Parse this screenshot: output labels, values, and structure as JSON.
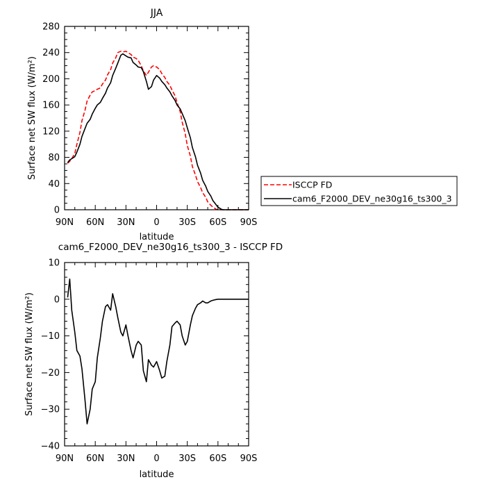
{
  "chart_data": [
    {
      "type": "line",
      "title": "JJA",
      "xlabel": "latitude",
      "ylabel": "Surface net SW flux (W/m²)",
      "xlim": [
        90,
        -90
      ],
      "ylim": [
        0,
        280
      ],
      "xticks": [
        "90N",
        "60N",
        "30N",
        "0",
        "30S",
        "60S",
        "90S"
      ],
      "yticks": [
        "0",
        "40",
        "80",
        "120",
        "160",
        "200",
        "240",
        "280"
      ],
      "legend_position": "right",
      "series": [
        {
          "name": "ISCCP FD",
          "color": "#ff0000",
          "dash": "dashed",
          "x": [
            87,
            85,
            83,
            80,
            78,
            75,
            73,
            70,
            68,
            65,
            63,
            60,
            58,
            55,
            53,
            50,
            48,
            45,
            43,
            40,
            38,
            35,
            33,
            30,
            28,
            25,
            23,
            20,
            18,
            15,
            13,
            10,
            8,
            5,
            3,
            0,
            -3,
            -5,
            -8,
            -10,
            -13,
            -15,
            -18,
            -20,
            -23,
            -25,
            -28,
            -30,
            -33,
            -35,
            -38,
            -40,
            -43,
            -45,
            -48,
            -50,
            -53,
            -55,
            -58,
            -60,
            -63,
            -65,
            -68,
            -70,
            -75,
            -80,
            -85,
            -90
          ],
          "y": [
            71,
            74,
            78,
            86,
            100,
            118,
            136,
            152,
            166,
            175,
            180,
            182,
            184,
            186,
            192,
            198,
            206,
            214,
            224,
            232,
            240,
            242,
            241,
            242,
            240,
            237,
            233,
            231,
            228,
            220,
            212,
            205,
            210,
            218,
            220,
            218,
            214,
            208,
            202,
            196,
            190,
            183,
            174,
            164,
            150,
            134,
            116,
            98,
            82,
            66,
            53,
            43,
            34,
            26,
            19,
            12,
            7,
            4,
            1,
            0,
            0,
            0,
            0,
            0,
            0,
            0,
            0,
            0
          ]
        },
        {
          "name": "cam6_F2000_DEV_ne30g16_ts300_3",
          "color": "#000000",
          "dash": "solid",
          "x": [
            87,
            85,
            83,
            80,
            78,
            75,
            73,
            70,
            68,
            65,
            63,
            60,
            58,
            55,
            53,
            50,
            48,
            45,
            43,
            40,
            38,
            35,
            33,
            30,
            28,
            25,
            23,
            20,
            18,
            15,
            13,
            10,
            8,
            5,
            3,
            0,
            -3,
            -5,
            -8,
            -10,
            -13,
            -15,
            -18,
            -20,
            -23,
            -25,
            -28,
            -30,
            -33,
            -35,
            -38,
            -40,
            -43,
            -45,
            -48,
            -50,
            -53,
            -55,
            -58,
            -60,
            -63,
            -65,
            -68,
            -70,
            -75,
            -80,
            -85,
            -90
          ],
          "y": [
            72,
            76,
            78,
            81,
            88,
            100,
            112,
            124,
            132,
            138,
            146,
            155,
            160,
            164,
            170,
            178,
            186,
            194,
            205,
            216,
            224,
            236,
            238,
            235,
            233,
            232,
            225,
            221,
            218,
            217,
            211,
            196,
            184,
            188,
            198,
            205,
            201,
            196,
            191,
            186,
            180,
            174,
            167,
            160,
            154,
            147,
            136,
            125,
            110,
            95,
            81,
            68,
            56,
            45,
            36,
            28,
            21,
            14,
            8,
            4,
            1,
            0,
            0,
            0,
            0,
            0,
            0,
            0
          ]
        }
      ]
    },
    {
      "type": "line",
      "title": "cam6_F2000_DEV_ne30g16_ts300_3 - ISCCP FD",
      "xlabel": "latitude",
      "ylabel": "Surface net SW flux (W/m²)",
      "xlim": [
        90,
        -90
      ],
      "ylim": [
        -40,
        10
      ],
      "xticks": [
        "90N",
        "60N",
        "30N",
        "0",
        "30S",
        "60S",
        "90S"
      ],
      "yticks": [
        "10",
        "0",
        "−10",
        "−20",
        "−30",
        "−40"
      ],
      "series": [
        {
          "color": "#000000",
          "dash": "solid",
          "x": [
            87,
            85,
            83,
            80,
            78,
            75,
            73,
            70,
            68,
            65,
            63,
            60,
            58,
            55,
            53,
            50,
            48,
            45,
            43,
            40,
            38,
            35,
            33,
            30,
            28,
            25,
            23,
            20,
            18,
            15,
            13,
            10,
            8,
            5,
            3,
            0,
            -3,
            -5,
            -8,
            -10,
            -13,
            -15,
            -18,
            -20,
            -23,
            -25,
            -28,
            -30,
            -33,
            -35,
            -38,
            -40,
            -43,
            -45,
            -48,
            -50,
            -53,
            -55,
            -58,
            -60,
            -63,
            -65,
            -68,
            -70,
            -75,
            -80,
            -85,
            -90
          ],
          "y": [
            0.5,
            5.5,
            -3,
            -9,
            -14,
            -15.5,
            -19,
            -27.5,
            -34,
            -30,
            -24.5,
            -22.5,
            -16,
            -10.5,
            -6,
            -2,
            -1.5,
            -3,
            1.5,
            -2,
            -5,
            -9,
            -10,
            -7,
            -10,
            -14,
            -16,
            -12.5,
            -11.5,
            -12.5,
            -19.5,
            -22.5,
            -16.5,
            -18,
            -18.5,
            -17,
            -19.5,
            -21.5,
            -21,
            -17,
            -12.5,
            -7.5,
            -6.5,
            -6,
            -7,
            -10,
            -12.5,
            -11.5,
            -7,
            -4.5,
            -2.5,
            -1.5,
            -1,
            -0.5,
            -1,
            -1,
            -0.5,
            -0.3,
            -0.1,
            0,
            0,
            0,
            0,
            0,
            0,
            0,
            0,
            0
          ]
        }
      ]
    }
  ]
}
